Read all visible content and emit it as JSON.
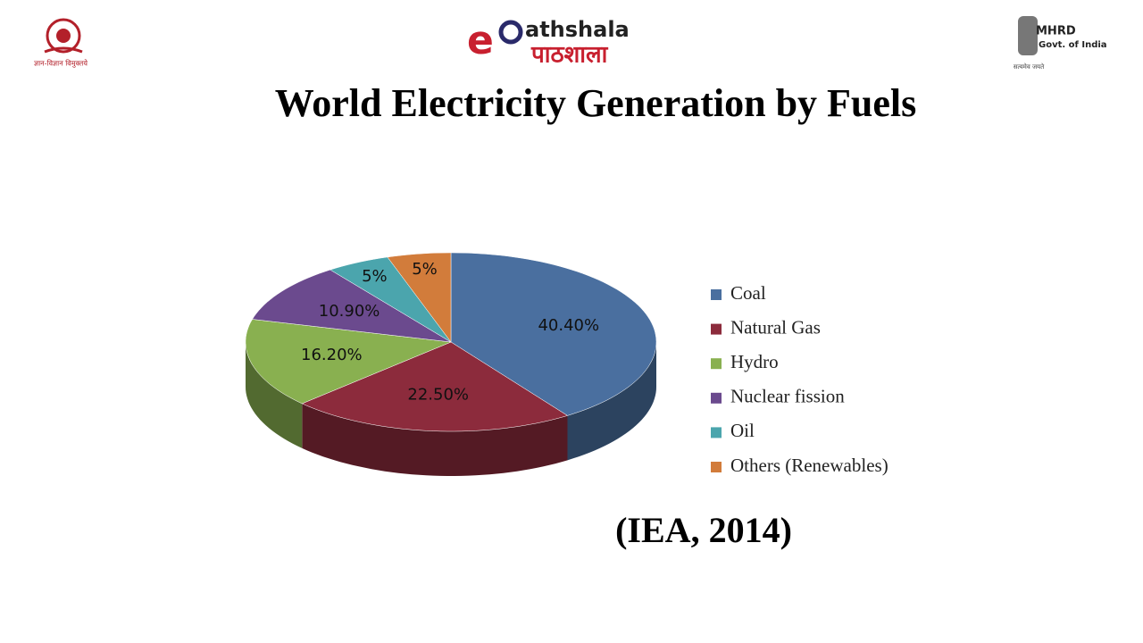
{
  "header": {
    "left_logo_text": "ज्ञान-विज्ञान विमुक्तये",
    "center_logo_text": "athshala",
    "center_logo_hindi": "पाठशाला",
    "right_logo_title": "MHRD",
    "right_logo_subtitle": "Govt. of India",
    "right_logo_motto": "सत्यमेव जयते"
  },
  "chart_data": {
    "type": "pie",
    "title": "World Electricity Generation by Fuels",
    "categories": [
      "Coal",
      "Natural Gas",
      "Hydro",
      "Nuclear fission",
      "Oil",
      "Others (Renewables)"
    ],
    "values": [
      40.4,
      22.5,
      16.2,
      10.9,
      5,
      5
    ],
    "value_labels": [
      "40.40%",
      "22.50%",
      "16.20%",
      "10.90%",
      "5%",
      "5%"
    ],
    "colors": [
      "#4a6f9f",
      "#8c2b3c",
      "#89b050",
      "#6b4a8e",
      "#4ba5ad",
      "#d27c3b"
    ],
    "legend": "right",
    "source": "(IEA, 2014)"
  }
}
